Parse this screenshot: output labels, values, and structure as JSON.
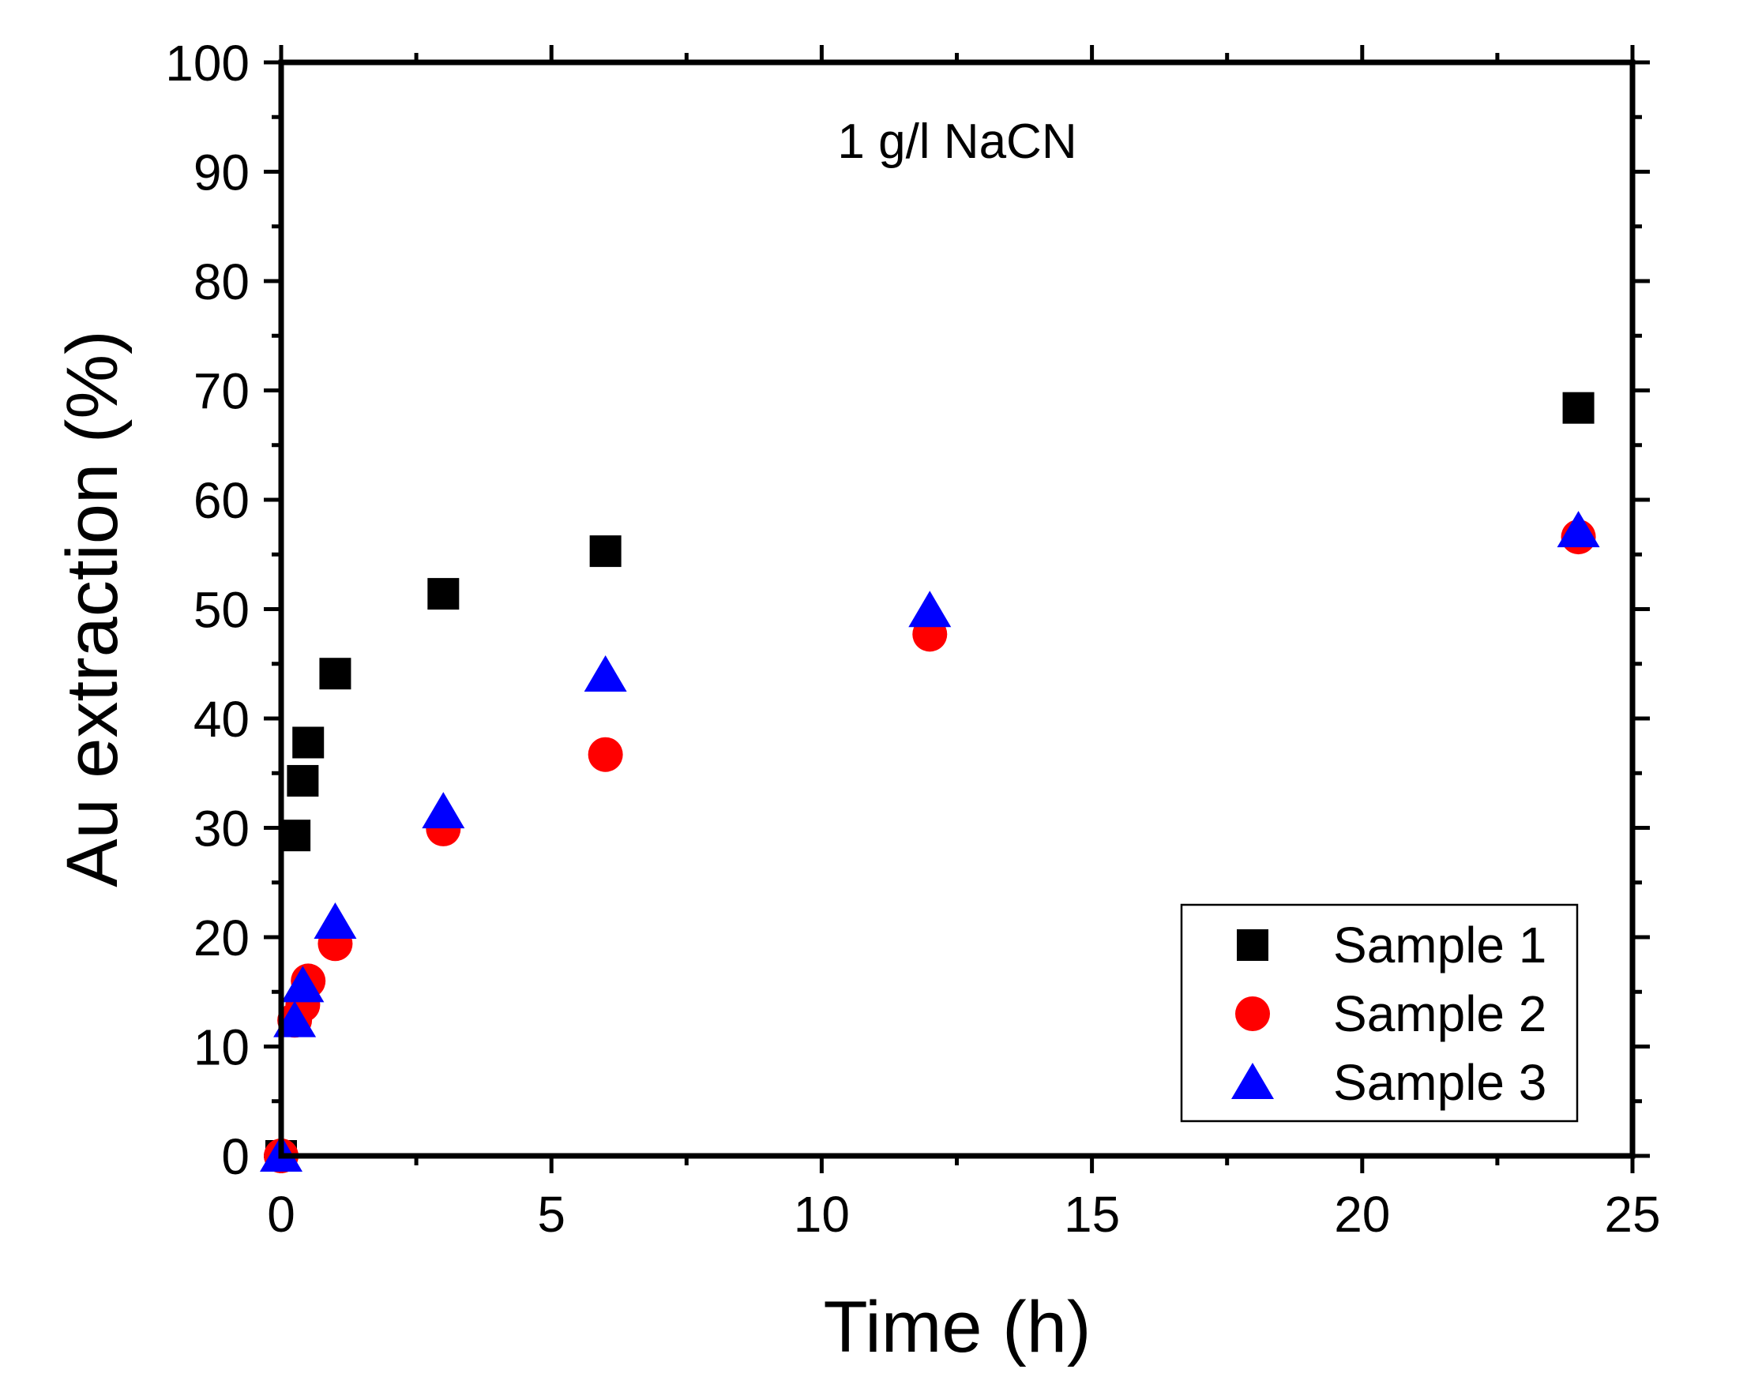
{
  "chart_data": {
    "type": "scatter",
    "title": "",
    "annotation": "1 g/l NaCN",
    "xlabel": "Time (h)",
    "ylabel": "Au extraction (%)",
    "xlim": [
      0,
      25
    ],
    "ylim": [
      0,
      100
    ],
    "xticks": [
      0,
      5,
      10,
      15,
      20,
      25
    ],
    "yticks": [
      0,
      10,
      20,
      30,
      40,
      50,
      60,
      70,
      80,
      90,
      100
    ],
    "grid": false,
    "legend_position": "bottom-right",
    "series": [
      {
        "name": "Sample 1",
        "marker": "square",
        "color": "#000000",
        "x": [
          0,
          0.25,
          0.4,
          0.5,
          1,
          3,
          6,
          24
        ],
        "y": [
          0,
          29.3,
          34.3,
          37.8,
          44.1,
          51.4,
          55.3,
          68.4
        ]
      },
      {
        "name": "Sample 2",
        "marker": "circle",
        "color": "#ff0000",
        "x": [
          0,
          0.25,
          0.4,
          0.5,
          1,
          3,
          6,
          12,
          24
        ],
        "y": [
          0,
          12.4,
          13.8,
          16.0,
          19.4,
          29.9,
          36.7,
          47.7,
          56.6
        ]
      },
      {
        "name": "Sample 3",
        "marker": "triangle",
        "color": "#0000ff",
        "x": [
          0,
          0.25,
          0.4,
          1,
          3,
          6,
          12,
          24
        ],
        "y": [
          0,
          12.3,
          15.5,
          21.3,
          31.4,
          43.9,
          49.8,
          57.1
        ]
      }
    ]
  }
}
